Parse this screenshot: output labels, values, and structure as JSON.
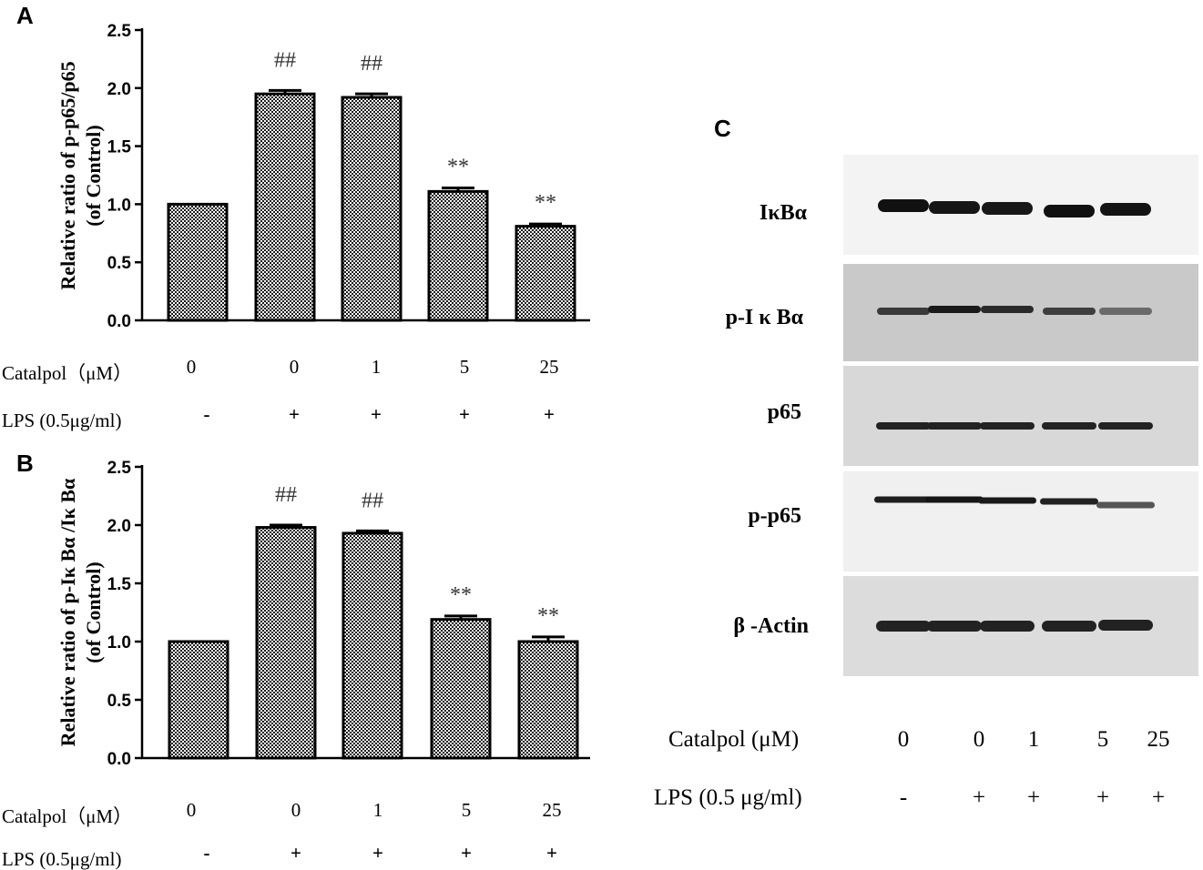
{
  "panels": {
    "A": "A",
    "B": "B",
    "C": "C"
  },
  "chart_data": [
    {
      "panel": "A",
      "type": "bar",
      "ylabel": [
        "Relative ratio of p-p65/p65",
        "(of Control)"
      ],
      "ylim": [
        0,
        2.5
      ],
      "yticks": [
        "0.0",
        "0.5",
        "1.0",
        "1.5",
        "2.0",
        "2.5"
      ],
      "values": [
        1.0,
        1.95,
        1.92,
        1.11,
        0.81
      ],
      "errors": [
        0.0,
        0.03,
        0.03,
        0.03,
        0.02
      ],
      "annotations": [
        "",
        "##",
        "##",
        "**",
        "**"
      ],
      "treatments": {
        "catalpol_label": "Catalpol（μM）",
        "catalpol_values": [
          "0",
          "0",
          "1",
          "5",
          "25"
        ],
        "lps_label": "LPS (0.5μg/ml)",
        "lps_values": [
          "-",
          "+",
          "+",
          "+",
          "+"
        ]
      }
    },
    {
      "panel": "B",
      "type": "bar",
      "ylabel": [
        "Relative ratio of p-Iκ Bα /Iκ Bα",
        "(of Control)"
      ],
      "ylim": [
        0,
        2.5
      ],
      "yticks": [
        "0.0",
        "0.5",
        "1.0",
        "1.5",
        "2.0",
        "2.5"
      ],
      "values": [
        1.0,
        1.98,
        1.93,
        1.19,
        1.0
      ],
      "errors": [
        0.0,
        0.02,
        0.02,
        0.03,
        0.04
      ],
      "annotations": [
        "",
        "##",
        "##",
        "**",
        "**"
      ],
      "treatments": {
        "catalpol_label": "Catalpol（μM）",
        "catalpol_values": [
          "0",
          "0",
          "1",
          "5",
          "25"
        ],
        "lps_label": "LPS (0.5μg/ml)",
        "lps_values": [
          "-",
          "+",
          "+",
          "+",
          "+"
        ]
      }
    }
  ],
  "blot": {
    "bands": [
      "IκBα",
      "p-I κ Bα",
      "p65",
      "p-p65",
      "β -Actin"
    ],
    "treatments": {
      "catalpol_label": "Catalpol (μM)",
      "catalpol_values": [
        "0",
        "0",
        "1",
        "5",
        "25"
      ],
      "lps_label": "LPS (0.5 μg/ml)",
      "lps_values": [
        "-",
        "+",
        "+",
        "+",
        "+"
      ]
    }
  },
  "colors": {
    "bar_pattern_dot": "#1a1a1a",
    "bar_pattern_bg": "#ffffff",
    "axis": "#000000"
  }
}
